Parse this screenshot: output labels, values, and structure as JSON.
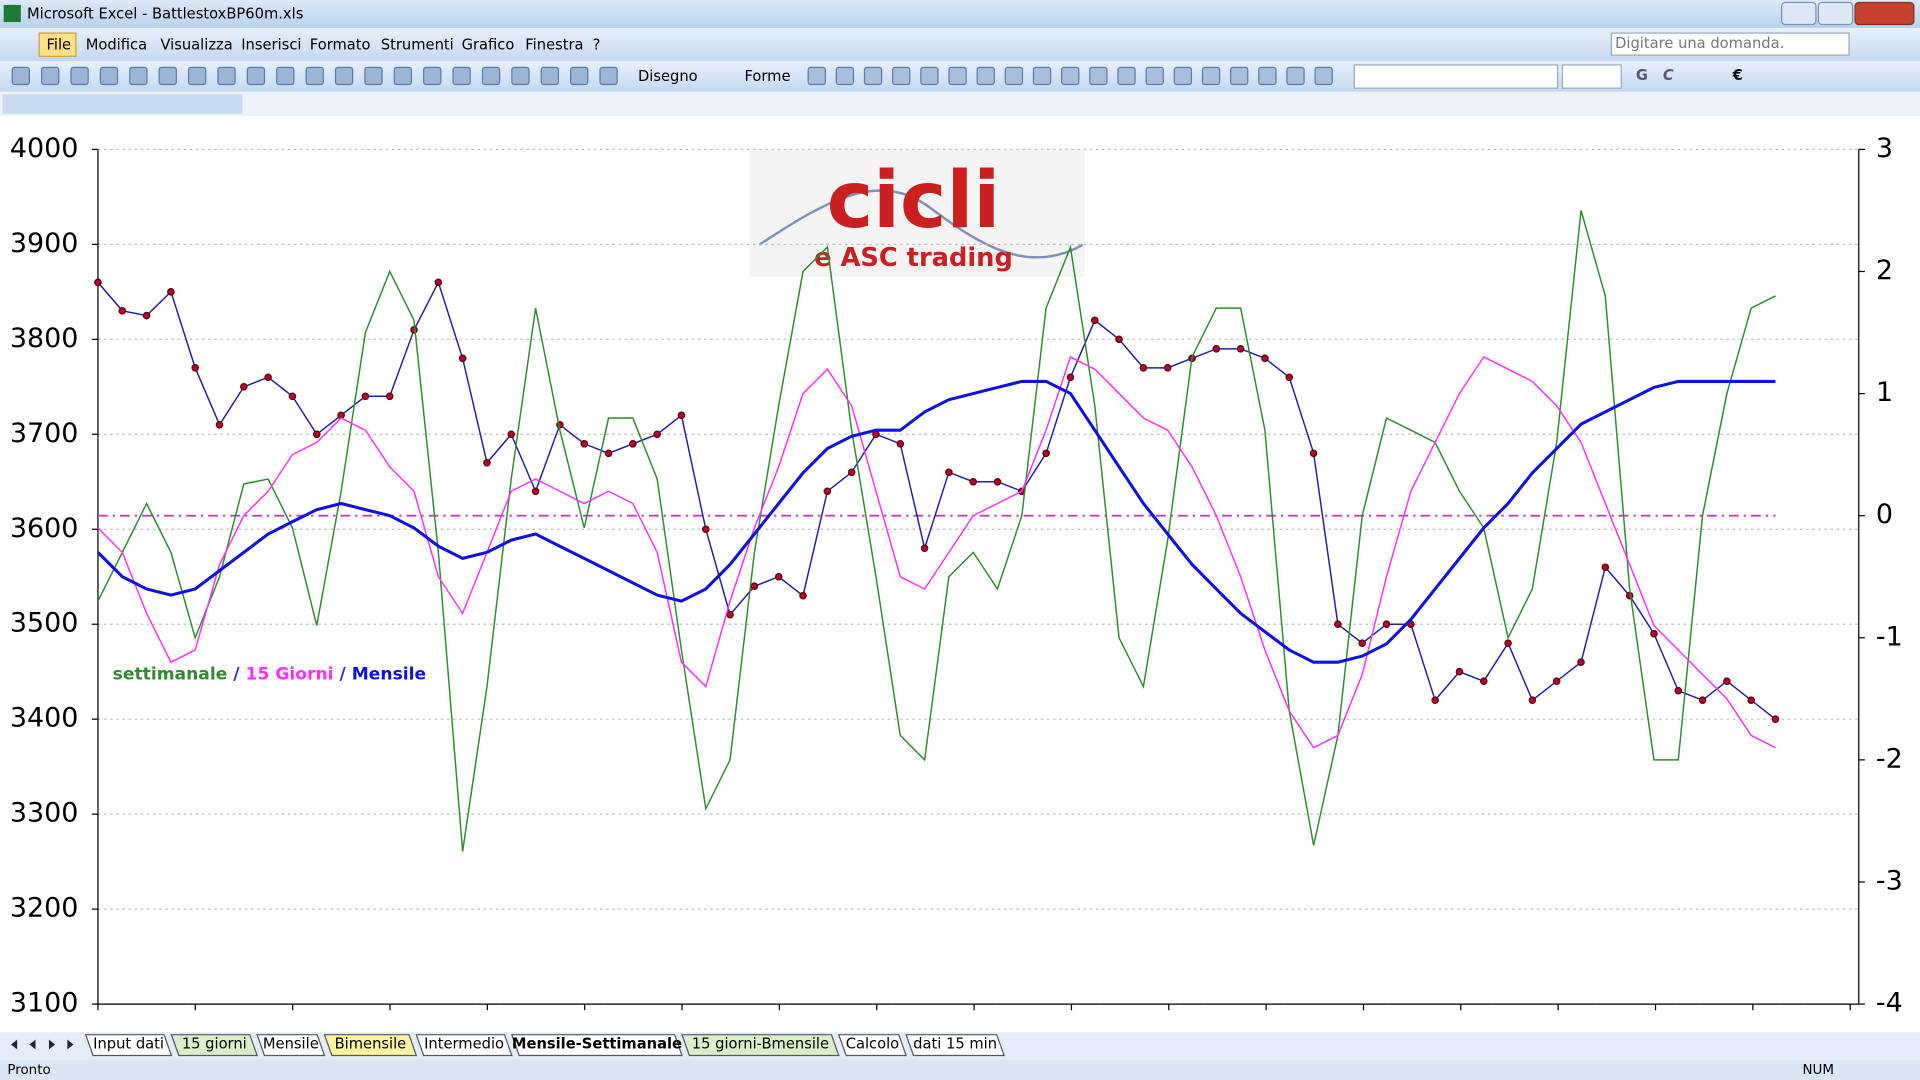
{
  "window": {
    "title": "Microsoft Excel - BattlestoxBP60m.xls"
  },
  "menu": [
    "File",
    "Modifica",
    "Visualizza",
    "Inserisci",
    "Formato",
    "Strumenti",
    "Grafico",
    "Finestra",
    "?"
  ],
  "help_box": "Digitare una domanda.",
  "toolbar": {
    "drawing": "Disegno",
    "shapes": "Forme",
    "font_symbol": "€",
    "bold": "G",
    "italic": "C"
  },
  "logo": {
    "title": "cicli",
    "subtitle": "e ASC trading"
  },
  "sheet_tabs": [
    {
      "label": "Input dati",
      "color": "#ffffff"
    },
    {
      "label": "15 giorni",
      "color": "#d8f0c8"
    },
    {
      "label": "Mensile",
      "color": "#ffffff"
    },
    {
      "label": "Bimensile",
      "color": "#fff3a0"
    },
    {
      "label": "Intermedio",
      "color": "#ffffff"
    },
    {
      "label": "Mensile-Settimanale",
      "color": "#ffffff",
      "active": true
    },
    {
      "label": "15 giorni-Bmensile",
      "color": "#d8f0c8"
    },
    {
      "label": "Calcolo",
      "color": "#ffffff"
    },
    {
      "label": "dati 15 min",
      "color": "#ffffff"
    }
  ],
  "status": {
    "left": "Pronto",
    "right": "NUM"
  },
  "chart_data": {
    "type": "line",
    "ylim": [
      3100,
      4000
    ],
    "yticks": [
      3100,
      3200,
      3300,
      3400,
      3500,
      3600,
      3700,
      3800,
      3900,
      4000
    ],
    "y2lim": [
      -4,
      3
    ],
    "y2ticks": [
      -4,
      -3,
      -2,
      -1,
      0,
      1,
      2,
      3
    ],
    "grid": true,
    "reference_line": {
      "value": 0,
      "axis": "y2",
      "color": "#c040c0"
    },
    "legend_separator": "/",
    "series": [
      {
        "color": "#2020a0",
        "marker_color": "#b0003a",
        "values": [
          3860,
          3830,
          3825,
          3850,
          3770,
          3710,
          3750,
          3760,
          3740,
          3700,
          3720,
          3740,
          3740,
          3810,
          3860,
          3780,
          3670,
          3700,
          3640,
          3710,
          3690,
          3680,
          3690,
          3700,
          3720,
          3600,
          3510,
          3540,
          3550,
          3530,
          3640,
          3660,
          3700,
          3690,
          3580,
          3660,
          3650,
          3650,
          3640,
          3680,
          3760,
          3820,
          3800,
          3770,
          3770,
          3780,
          3790,
          3790,
          3780,
          3760,
          3680,
          3500,
          3480,
          3500,
          3500,
          3420,
          3450,
          3440,
          3480,
          3420,
          3440,
          3460,
          3560,
          3530,
          3490,
          3430,
          3420,
          3440,
          3420,
          3400
        ]
      },
      {
        "name": "settimanale",
        "color": "#2e8b2e",
        "axis": "y2",
        "values": [
          -0.7,
          -0.3,
          0.1,
          -0.3,
          -1.0,
          -0.5,
          0.26,
          0.3,
          -0.1,
          -0.9,
          0.2,
          1.5,
          2.0,
          1.6,
          -0.3,
          -2.75,
          -1.4,
          0.3,
          1.7,
          0.7,
          -0.1,
          0.8,
          0.8,
          0.3,
          -1.1,
          -2.4,
          -2.0,
          -0.3,
          0.9,
          2.0,
          2.2,
          0.7,
          -0.5,
          -1.8,
          -2.0,
          -0.5,
          -0.3,
          -0.6,
          0,
          1.7,
          2.2,
          0.9,
          -1.0,
          -1.4,
          -0.2,
          1.3,
          1.7,
          1.7,
          0.7,
          -1.6,
          -2.7,
          -1.8,
          0,
          0.8,
          0.7,
          0.6,
          0.2,
          -0.1,
          -1.0,
          -0.6,
          0.6,
          2.5,
          1.8,
          -0.6,
          -2.0,
          -2.0,
          0,
          1.0,
          1.7,
          1.8
        ]
      },
      {
        "name": "15 Giorni",
        "color": "#ff30ff",
        "axis": "y2",
        "values": [
          -0.1,
          -0.3,
          -0.8,
          -1.2,
          -1.1,
          -0.4,
          0,
          0.2,
          0.5,
          0.6,
          0.8,
          0.7,
          0.4,
          0.2,
          -0.5,
          -0.8,
          -0.3,
          0.2,
          0.3,
          0.2,
          0.1,
          0.2,
          0.1,
          -0.3,
          -1.2,
          -1.4,
          -0.7,
          -0.1,
          0.4,
          1.0,
          1.2,
          0.9,
          0.2,
          -0.5,
          -0.6,
          -0.3,
          0,
          0.1,
          0.2,
          0.7,
          1.3,
          1.2,
          1.0,
          0.8,
          0.7,
          0.4,
          0,
          -0.5,
          -1.1,
          -1.6,
          -1.9,
          -1.8,
          -1.3,
          -0.5,
          0.2,
          0.6,
          1.0,
          1.3,
          1.2,
          1.1,
          0.9,
          0.6,
          0.1,
          -0.4,
          -0.9,
          -1.1,
          -1.3,
          -1.5,
          -1.8,
          -1.9
        ]
      },
      {
        "name": "Mensile",
        "color": "#1010e0",
        "axis": "y2",
        "values": [
          -0.3,
          -0.5,
          -0.6,
          -0.65,
          -0.6,
          -0.45,
          -0.3,
          -0.15,
          -0.05,
          0.05,
          0.1,
          0.05,
          0,
          -0.1,
          -0.25,
          -0.35,
          -0.3,
          -0.2,
          -0.15,
          -0.25,
          -0.35,
          -0.45,
          -0.55,
          -0.65,
          -0.7,
          -0.6,
          -0.4,
          -0.15,
          0.1,
          0.35,
          0.55,
          0.65,
          0.7,
          0.7,
          0.85,
          0.95,
          1.0,
          1.05,
          1.1,
          1.1,
          1.0,
          0.7,
          0.4,
          0.1,
          -0.15,
          -0.4,
          -0.6,
          -0.8,
          -0.95,
          -1.1,
          -1.2,
          -1.2,
          -1.15,
          -1.05,
          -0.85,
          -0.6,
          -0.35,
          -0.1,
          0.1,
          0.35,
          0.55,
          0.75,
          0.85,
          0.95,
          1.05,
          1.1,
          1.1,
          1.1,
          1.1,
          1.1
        ]
      }
    ]
  }
}
